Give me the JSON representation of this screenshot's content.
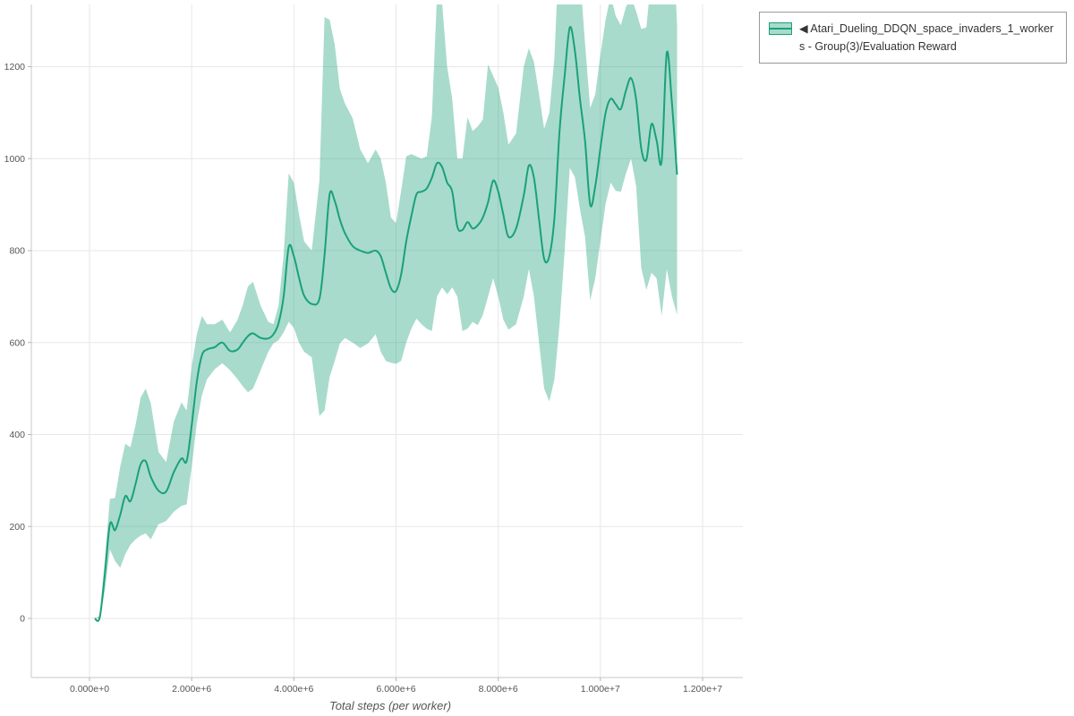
{
  "page": {
    "background": "#ffffff"
  },
  "legend": {
    "label": "◀ Atari_Dueling_DDQN_space_invaders_1_workers - Group(3)/Evaluation Reward",
    "position": "top-right-outside"
  },
  "chart_data": {
    "type": "line",
    "title": "",
    "xlabel": "Total steps (per worker)",
    "ylabel": "",
    "grid": true,
    "xlim": [
      -1140000,
      12790000
    ],
    "ylim": [
      -128,
      1335
    ],
    "x_ticks": {
      "values": [
        0,
        2000000,
        4000000,
        6000000,
        8000000,
        10000000,
        12000000
      ],
      "labels": [
        "0.000e+0",
        "2.000e+6",
        "4.000e+6",
        "6.000e+6",
        "8.000e+6",
        "1.000e+7",
        "1.200e+7"
      ]
    },
    "y_ticks": {
      "values": [
        0,
        200,
        400,
        600,
        800,
        1000,
        1200
      ],
      "labels": [
        "0",
        "200",
        "400",
        "600",
        "800",
        "1000",
        "1200"
      ]
    },
    "colors": {
      "line": "#1aa179",
      "band": "#1aa179",
      "band_opacity": 0.38,
      "grid": "#e7e7e7",
      "axis": "#c8c8c8",
      "tick_text": "#555555"
    },
    "series": [
      {
        "name": "Atari_Dueling_DDQN_space_invaders_1_workers - Group(3)/Evaluation Reward",
        "marker": "◀",
        "x": [
          100000,
          200000,
          300000,
          400000,
          500000,
          600000,
          700000,
          800000,
          900000,
          1000000,
          1100000,
          1200000,
          1350000,
          1500000,
          1650000,
          1800000,
          1900000,
          2000000,
          2100000,
          2200000,
          2300000,
          2450000,
          2600000,
          2750000,
          2900000,
          3000000,
          3100000,
          3200000,
          3350000,
          3500000,
          3600000,
          3700000,
          3800000,
          3900000,
          4000000,
          4100000,
          4200000,
          4350000,
          4500000,
          4600000,
          4700000,
          4800000,
          4900000,
          5000000,
          5150000,
          5300000,
          5450000,
          5600000,
          5700000,
          5800000,
          5900000,
          6000000,
          6100000,
          6200000,
          6300000,
          6400000,
          6500000,
          6600000,
          6700000,
          6800000,
          6900000,
          7000000,
          7100000,
          7200000,
          7300000,
          7400000,
          7500000,
          7600000,
          7700000,
          7800000,
          7900000,
          8000000,
          8100000,
          8200000,
          8350000,
          8500000,
          8600000,
          8700000,
          8800000,
          8900000,
          9000000,
          9100000,
          9200000,
          9300000,
          9400000,
          9500000,
          9600000,
          9700000,
          9800000,
          9900000,
          10000000,
          10100000,
          10200000,
          10300000,
          10400000,
          10500000,
          10600000,
          10700000,
          10800000,
          10900000,
          11000000,
          11100000,
          11200000,
          11300000,
          11400000,
          11500000
        ],
        "mean": [
          0,
          2,
          95,
          205,
          192,
          225,
          266,
          255,
          292,
          335,
          342,
          308,
          278,
          276,
          318,
          348,
          342,
          420,
          515,
          572,
          585,
          590,
          600,
          582,
          585,
          600,
          614,
          620,
          610,
          609,
          618,
          642,
          700,
          808,
          788,
          742,
          702,
          684,
          695,
          790,
          922,
          908,
          868,
          838,
          810,
          800,
          795,
          800,
          788,
          752,
          718,
          712,
          748,
          820,
          875,
          922,
          928,
          935,
          958,
          990,
          982,
          948,
          928,
          852,
          845,
          862,
          848,
          855,
          872,
          905,
          952,
          928,
          878,
          830,
          848,
          920,
          985,
          958,
          868,
          782,
          788,
          872,
          1060,
          1180,
          1285,
          1235,
          1130,
          1038,
          900,
          940,
          1022,
          1098,
          1130,
          1118,
          1108,
          1148,
          1175,
          1128,
          1022,
          998,
          1075,
          1040,
          995,
          1230,
          1120,
          965
        ],
        "lower": [
          0,
          0,
          60,
          150,
          125,
          110,
          140,
          160,
          172,
          180,
          185,
          172,
          205,
          212,
          232,
          245,
          248,
          330,
          425,
          485,
          520,
          542,
          555,
          540,
          520,
          505,
          492,
          500,
          540,
          580,
          598,
          605,
          622,
          645,
          632,
          600,
          580,
          568,
          440,
          452,
          525,
          560,
          598,
          610,
          600,
          588,
          598,
          618,
          580,
          560,
          556,
          554,
          560,
          600,
          630,
          652,
          640,
          630,
          625,
          700,
          720,
          705,
          720,
          700,
          625,
          630,
          645,
          638,
          660,
          700,
          740,
          700,
          650,
          628,
          640,
          700,
          760,
          700,
          600,
          500,
          472,
          520,
          640,
          800,
          980,
          960,
          890,
          830,
          692,
          740,
          820,
          900,
          948,
          930,
          928,
          968,
          1000,
          940,
          762,
          715,
          752,
          740,
          658,
          760,
          700,
          660
        ],
        "upper": [
          0,
          5,
          130,
          260,
          262,
          330,
          380,
          372,
          420,
          480,
          500,
          468,
          362,
          340,
          428,
          470,
          452,
          548,
          618,
          658,
          640,
          640,
          650,
          622,
          650,
          682,
          722,
          732,
          680,
          645,
          640,
          680,
          790,
          968,
          948,
          880,
          820,
          800,
          952,
          1308,
          1302,
          1248,
          1152,
          1120,
          1088,
          1020,
          990,
          1020,
          1000,
          948,
          872,
          860,
          930,
          1005,
          1010,
          1005,
          1000,
          1005,
          1090,
          1352,
          1340,
          1200,
          1130,
          1000,
          1000,
          1090,
          1060,
          1070,
          1085,
          1205,
          1180,
          1155,
          1100,
          1030,
          1055,
          1200,
          1240,
          1210,
          1140,
          1065,
          1100,
          1220,
          1480,
          1640,
          1700,
          1580,
          1400,
          1250,
          1110,
          1140,
          1225,
          1300,
          1355,
          1310,
          1290,
          1330,
          1352,
          1320,
          1282,
          1285,
          1400,
          1360,
          1335,
          1700,
          1540,
          1290
        ]
      }
    ]
  }
}
